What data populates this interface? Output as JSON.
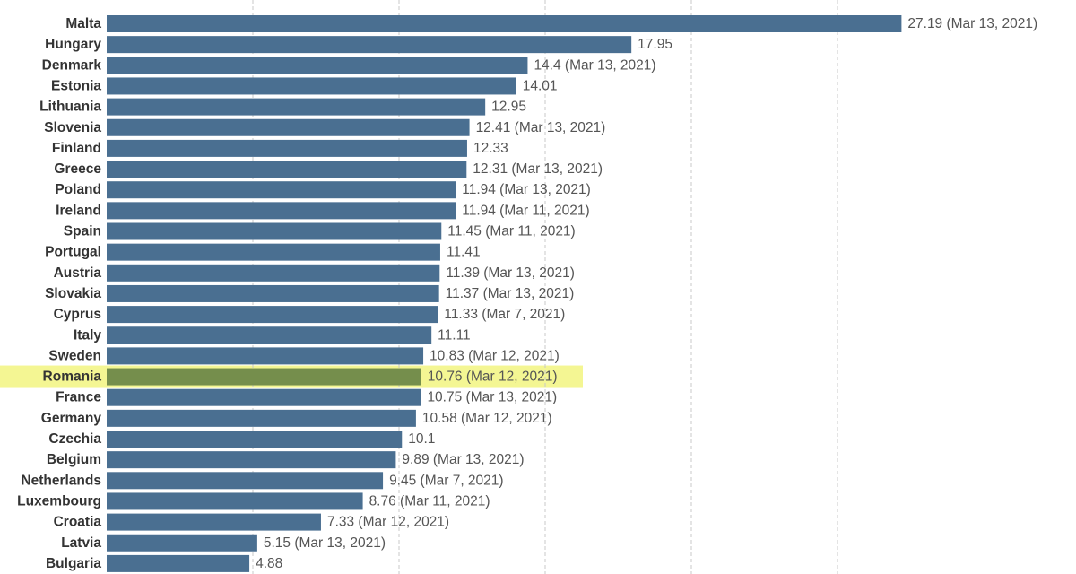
{
  "colors": {
    "bar": "#4a6f91",
    "highlight_bar": "#758e4c",
    "highlight_band": "#f2f480"
  },
  "highlight_category": "Romania",
  "chart_data": {
    "type": "bar",
    "orientation": "horizontal",
    "title": "",
    "xlabel": "",
    "ylabel": "",
    "xlim": [
      0,
      27.19
    ],
    "grid": true,
    "categories": [
      "Malta",
      "Hungary",
      "Denmark",
      "Estonia",
      "Lithuania",
      "Slovenia",
      "Finland",
      "Greece",
      "Poland",
      "Ireland",
      "Spain",
      "Portugal",
      "Austria",
      "Slovakia",
      "Cyprus",
      "Italy",
      "Sweden",
      "Romania",
      "France",
      "Germany",
      "Czechia",
      "Belgium",
      "Netherlands",
      "Luxembourg",
      "Croatia",
      "Latvia",
      "Bulgaria"
    ],
    "values": [
      27.19,
      17.95,
      14.4,
      14.01,
      12.95,
      12.41,
      12.33,
      12.31,
      11.94,
      11.94,
      11.45,
      11.41,
      11.39,
      11.37,
      11.33,
      11.11,
      10.83,
      10.76,
      10.75,
      10.58,
      10.1,
      9.89,
      9.45,
      8.76,
      7.33,
      5.15,
      4.88
    ],
    "data_labels": [
      "27.19 (Mar 13, 2021)",
      "17.95",
      "14.4 (Mar 13, 2021)",
      "14.01",
      "12.95",
      "12.41 (Mar 13, 2021)",
      "12.33",
      "12.31 (Mar 13, 2021)",
      "11.94 (Mar 13, 2021)",
      "11.94 (Mar 11, 2021)",
      "11.45 (Mar 11, 2021)",
      "11.41",
      "11.39 (Mar 13, 2021)",
      "11.37 (Mar 13, 2021)",
      "11.33 (Mar 7, 2021)",
      "11.11",
      "10.83 (Mar 12, 2021)",
      "10.76 (Mar 12, 2021)",
      "10.75 (Mar 13, 2021)",
      "10.58 (Mar 12, 2021)",
      "10.1",
      "9.89 (Mar 13, 2021)",
      "9.45 (Mar 7, 2021)",
      "8.76 (Mar 11, 2021)",
      "7.33 (Mar 12, 2021)",
      "5.15 (Mar 13, 2021)",
      "4.88"
    ],
    "grid_values": [
      5,
      10,
      15,
      20,
      25
    ]
  }
}
